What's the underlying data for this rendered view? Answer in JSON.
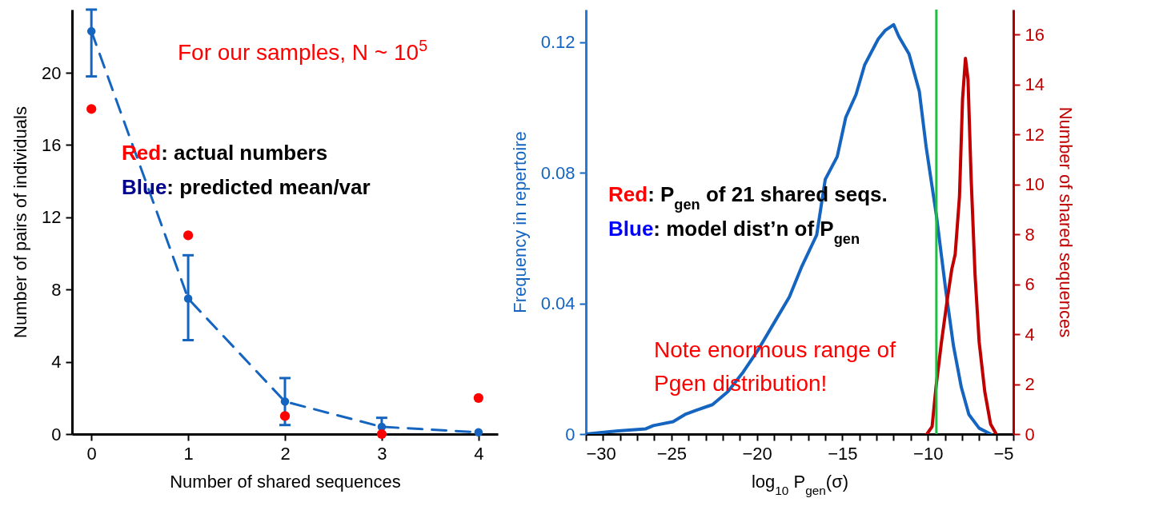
{
  "chart_data": [
    {
      "type": "line",
      "xlabel": "Number of shared sequences",
      "ylabel": "Number of pairs of individuals",
      "annotations": [
        "For our samples, N ~ 10$^{5}$",
        "Red: actual numbers",
        "Blue: predicted mean/var"
      ],
      "x": [
        0,
        1,
        2,
        3,
        4
      ],
      "xlim": [
        -0.2,
        4.2
      ],
      "xticks": [
        0,
        1,
        2,
        3,
        4
      ],
      "ylim": [
        0,
        23.5
      ],
      "yticks": [
        0,
        4,
        8,
        12,
        16,
        20
      ],
      "marker": "circle",
      "series": [
        {
          "type": "line",
          "color": "#1565c0",
          "line_style": "dashed",
          "values": [
            22.3,
            7.5,
            1.8,
            0.4,
            0.1
          ],
          "errors": [
            [
              19.8,
              23.5
            ],
            [
              5.2,
              9.9
            ],
            [
              0.5,
              3.1
            ],
            [
              0.4,
              0.9
            ],
            null
          ]
        },
        {
          "type": "scatter",
          "color": "#ff0000",
          "values": [
            18,
            11,
            1,
            0,
            2
          ]
        }
      ]
    },
    {
      "type": "line",
      "xlabel": "log$_{10}$ P$_{gen}$(σ)",
      "ylabel": "Frequency in repertoire",
      "y2label": "Number of shared sequences",
      "annotations": [
        "Red: P$_{gen}$ of 21 shared seqs.",
        "Blue: model dist’n of P$_{gen}$",
        "Note enormous range of Pgen distribution!"
      ],
      "xlim": [
        -30,
        -5
      ],
      "xticks": [
        -30,
        {
          "value": -29,
          "label": null
        },
        {
          "value": -28,
          "label": null
        },
        {
          "value": -27,
          "label": null
        },
        {
          "value": -26,
          "label": null
        },
        -25,
        {
          "value": -24,
          "label": null
        },
        {
          "value": -23,
          "label": null
        },
        {
          "value": -22,
          "label": null
        },
        {
          "value": -21,
          "label": null
        },
        -20,
        {
          "value": -19,
          "label": null
        },
        {
          "value": -18,
          "label": null
        },
        {
          "value": -17,
          "label": null
        },
        {
          "value": -16,
          "label": null
        },
        -15,
        {
          "value": -14,
          "label": null
        },
        {
          "value": -13,
          "label": null
        },
        {
          "value": -12,
          "label": null
        },
        {
          "value": -11,
          "label": null
        },
        -10,
        {
          "value": -9,
          "label": null
        },
        {
          "value": -8,
          "label": null
        },
        {
          "value": -7,
          "label": null
        },
        {
          "value": -6,
          "label": null
        },
        -5
      ],
      "ylim": [
        0,
        0.13
      ],
      "yticks": [
        0,
        0.04,
        0.08,
        0.12
      ],
      "y2lim": [
        0,
        17
      ],
      "y2ticks": [
        0,
        2,
        4,
        6,
        8,
        10,
        12,
        14,
        16
      ],
      "ref_lines": [
        {
          "axis": "x",
          "value": -9.5,
          "color": "#22bb44"
        }
      ],
      "series": [
        {
          "type": "line",
          "color": "#1565c0",
          "x": [
            -30,
            -28.1,
            -26.5,
            -26.05,
            -24.9,
            -24.2,
            -23.5,
            -22.6,
            -21.7,
            -20.8,
            -19.9,
            -19.0,
            -18.1,
            -17.4,
            -16.5,
            -16.0,
            -15.3,
            -14.8,
            -14.2,
            -13.7,
            -12.9,
            -12.5,
            -12.0,
            -11.7,
            -11.1,
            -10.5,
            -10.1,
            -9.5,
            -8.95,
            -8.5,
            -8.04,
            -7.6,
            -7.0,
            -6.33
          ],
          "values": [
            0,
            0.001,
            0.0016,
            0.0026,
            0.0038,
            0.006,
            0.0074,
            0.009,
            0.013,
            0.019,
            0.026,
            0.034,
            0.042,
            0.051,
            0.061,
            0.078,
            0.085,
            0.097,
            0.104,
            0.113,
            0.121,
            0.1236,
            0.1254,
            0.1218,
            0.1164,
            0.105,
            0.088,
            0.067,
            0.044,
            0.027,
            0.0143,
            0.006,
            0.0018,
            0
          ]
        },
        {
          "type": "line",
          "color": "#c00000",
          "axis": "y2",
          "x": [
            -10.05,
            -9.75,
            -9.52,
            -9.2,
            -8.84,
            -8.6,
            -8.4,
            -8.15,
            -7.97,
            -7.8,
            -7.65,
            -7.47,
            -7.24,
            -7.0,
            -6.67,
            -6.33,
            -6.0
          ],
          "values": [
            0,
            0.3,
            1.9,
            3.7,
            5.5,
            6.6,
            7.2,
            9.5,
            13.4,
            15.05,
            14.2,
            10.3,
            6.4,
            3.7,
            1.7,
            0.4,
            0
          ]
        }
      ]
    }
  ]
}
